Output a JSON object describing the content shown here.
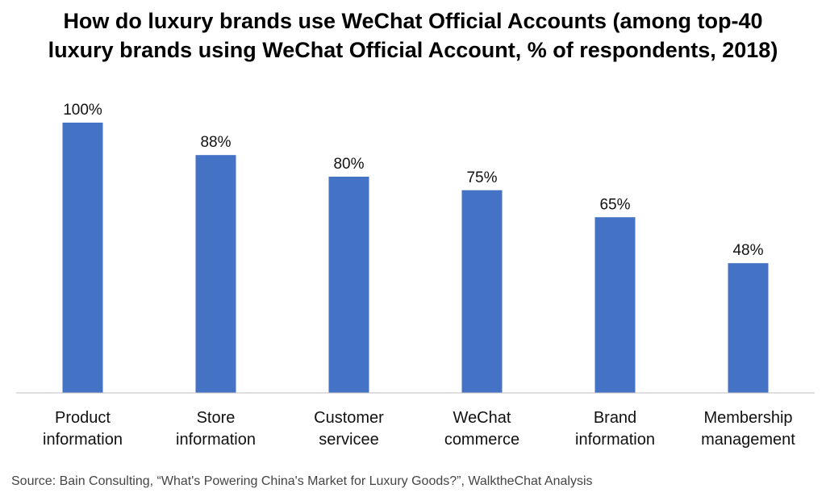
{
  "chart_data": {
    "type": "bar",
    "title_lines": [
      "How do luxury brands use WeChat Official Accounts (among top-40",
      "luxury brands using WeChat Official Account, % of respondents, 2018)"
    ],
    "categories": [
      [
        "Product",
        "information"
      ],
      [
        "Store",
        "information"
      ],
      [
        "Customer",
        "servicee"
      ],
      [
        "WeChat",
        "commerce"
      ],
      [
        "Brand",
        "information"
      ],
      [
        "Membership",
        "management"
      ]
    ],
    "values": [
      100,
      88,
      80,
      75,
      65,
      48
    ],
    "data_labels": [
      "100%",
      "88%",
      "80%",
      "75%",
      "65%",
      "48%"
    ],
    "ylim": [
      0,
      100
    ],
    "bar_color": "#4472C4",
    "grid": false,
    "legend": "none"
  },
  "source": "Source: Bain Consulting, “What's Powering China's Market for Luxury Goods?”, WalktheChat Analysis"
}
